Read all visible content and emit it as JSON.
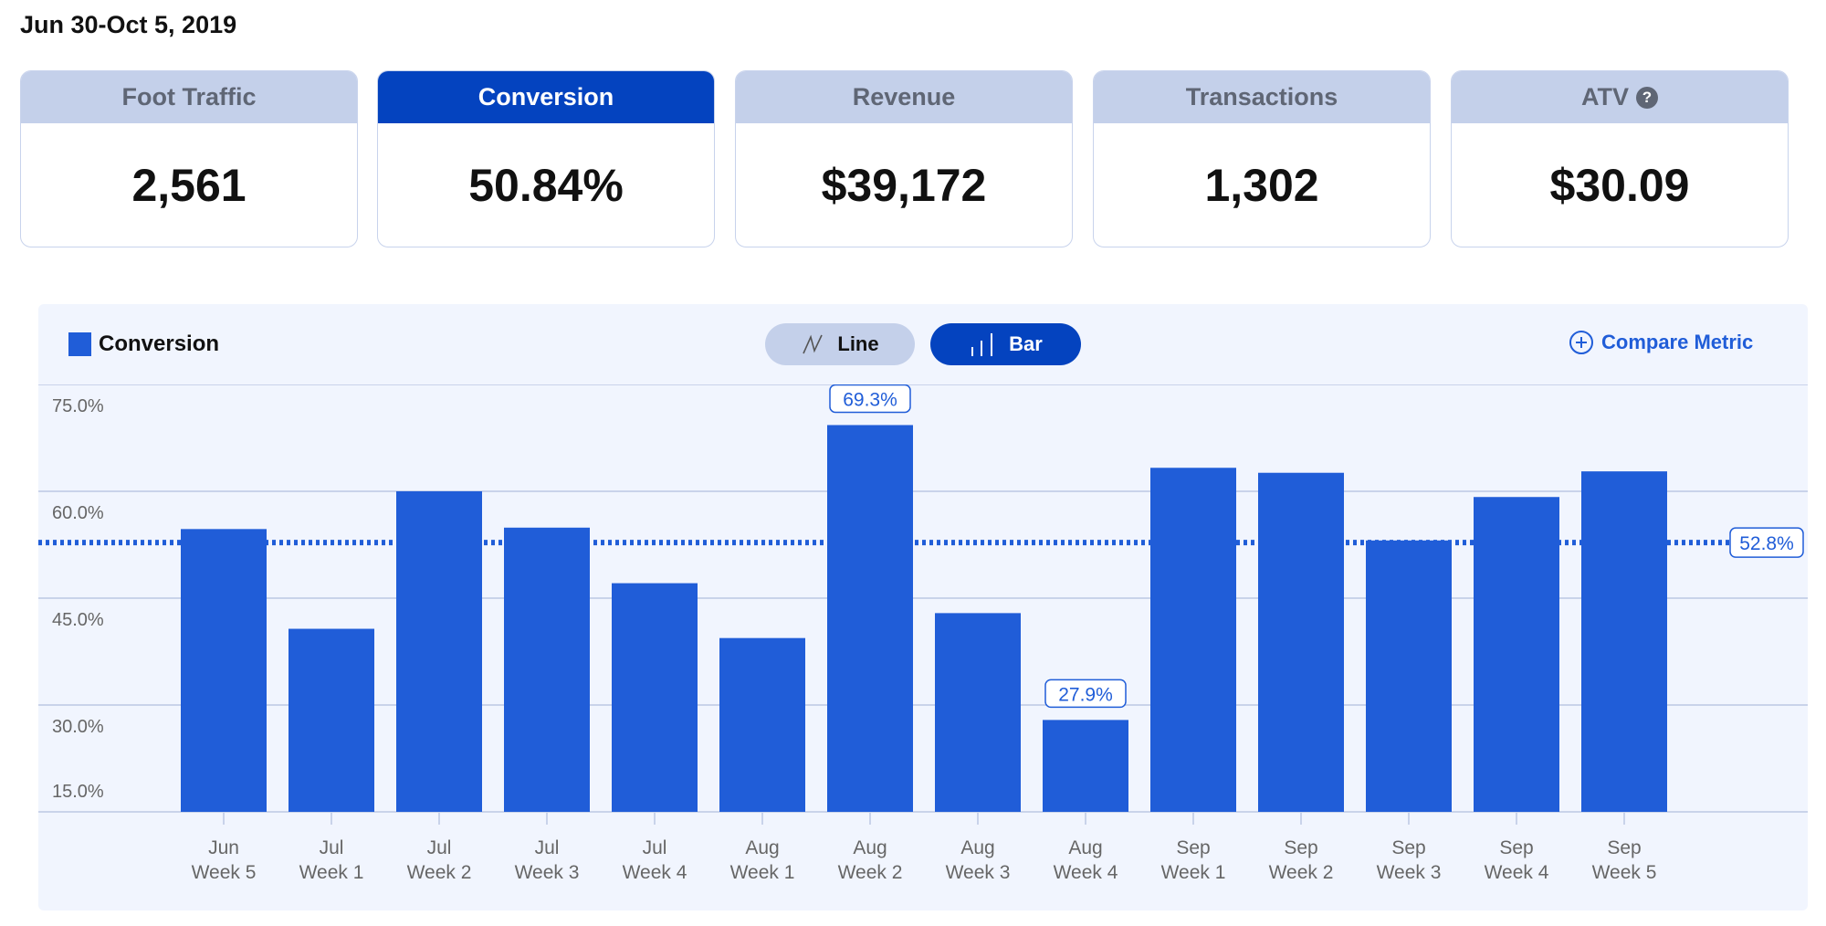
{
  "date_range": "Jun 30-Oct 5, 2019",
  "cards": [
    {
      "label": "Foot Traffic",
      "value": "2,561",
      "active": false
    },
    {
      "label": "Conversion",
      "value": "50.84%",
      "active": true
    },
    {
      "label": "Revenue",
      "value": "$39,172",
      "active": false
    },
    {
      "label": "Transactions",
      "value": "1,302",
      "active": false
    },
    {
      "label": "ATV",
      "value": "$30.09",
      "active": false,
      "help_icon": "?"
    }
  ],
  "toolbar": {
    "line_label": "Line",
    "bar_label": "Bar",
    "compare_label": "Compare Metric",
    "selected": "Bar"
  },
  "colors": {
    "bar": "#205dd8",
    "accent": "#0443bf",
    "panel": "#f1f5fe"
  },
  "chart_data": {
    "type": "bar",
    "legend": "Conversion",
    "legend_position": "top-left",
    "categories": [
      [
        "Jun",
        "Week 5"
      ],
      [
        "Jul",
        "Week 1"
      ],
      [
        "Jul",
        "Week 2"
      ],
      [
        "Jul",
        "Week 3"
      ],
      [
        "Jul",
        "Week 4"
      ],
      [
        "Aug",
        "Week 1"
      ],
      [
        "Aug",
        "Week 2"
      ],
      [
        "Aug",
        "Week 3"
      ],
      [
        "Aug",
        "Week 4"
      ],
      [
        "Sep",
        "Week 1"
      ],
      [
        "Sep",
        "Week 2"
      ],
      [
        "Sep",
        "Week 3"
      ],
      [
        "Sep",
        "Week 4"
      ],
      [
        "Sep",
        "Week 5"
      ]
    ],
    "values": [
      54.7,
      40.7,
      60.0,
      54.9,
      47.1,
      39.4,
      69.3,
      42.9,
      27.9,
      63.3,
      62.6,
      53.1,
      59.2,
      62.8
    ],
    "ylim": [
      15,
      75
    ],
    "yticks": [
      "75.0%",
      "60.0%",
      "45.0%",
      "30.0%",
      "15.0%"
    ],
    "ytick_values": [
      75,
      60,
      45,
      30,
      15
    ],
    "grid": true,
    "annotations": [
      {
        "index": 6,
        "label": "69.3%"
      },
      {
        "index": 8,
        "label": "27.9%"
      }
    ],
    "average": {
      "value": 52.8,
      "label": "52.8%"
    }
  }
}
